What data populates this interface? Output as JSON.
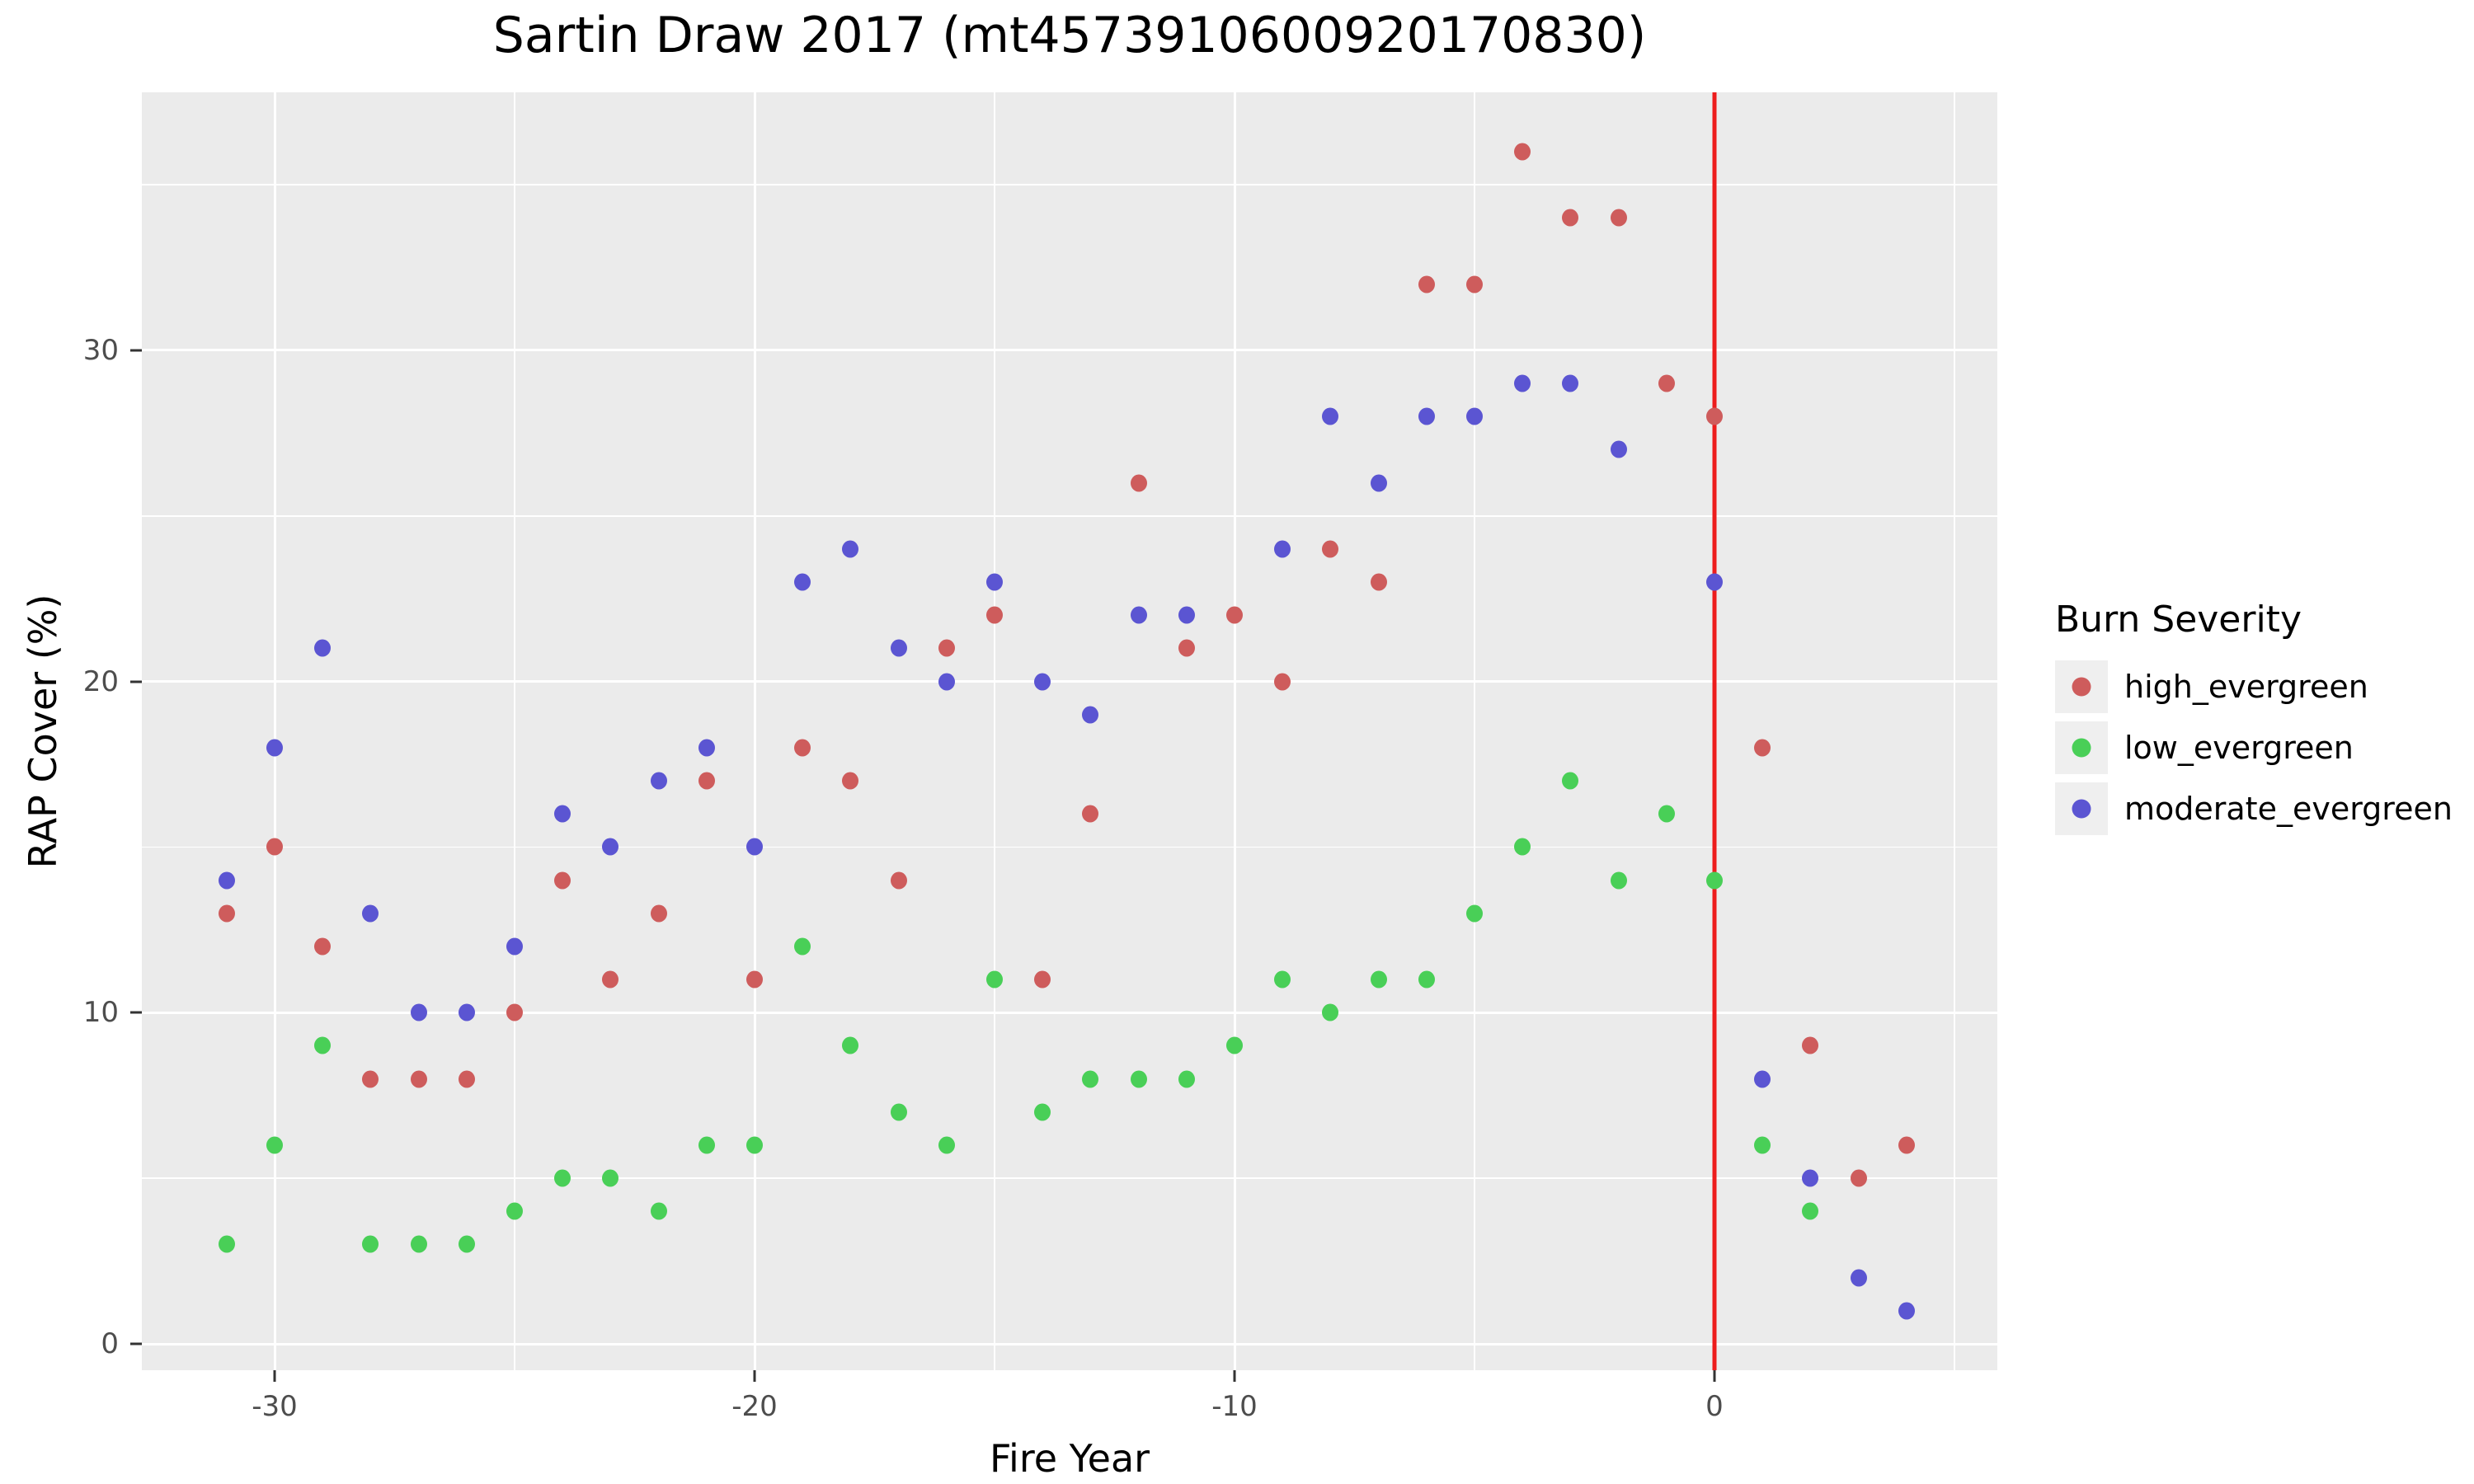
{
  "title": "Sartin Draw 2017 (mt4573910600920170830)",
  "axes": {
    "x": {
      "label": "Fire Year",
      "ticks": [
        -30,
        -20,
        -10,
        0
      ],
      "tick_labels": [
        "-30",
        "-20",
        "-10",
        "0"
      ],
      "minor_ticks": [
        -25,
        -15,
        -5,
        5
      ],
      "range": [
        -32.8,
        5.9
      ]
    },
    "y": {
      "label": "RAP Cover (%)",
      "ticks": [
        0,
        10,
        20,
        30
      ],
      "tick_labels": [
        "0",
        "10",
        "20",
        "30"
      ],
      "minor_ticks": [
        5,
        15,
        25,
        35
      ],
      "range": [
        -0.8,
        37.8
      ]
    }
  },
  "vline": {
    "x": 0,
    "color": "#ED1C1C"
  },
  "legend": {
    "title": "Burn Severity",
    "items": [
      {
        "label": "high_evergreen",
        "color": "#CE5C5C"
      },
      {
        "label": "low_evergreen",
        "color": "#49CF57"
      },
      {
        "label": "moderate_evergreen",
        "color": "#5B55D2"
      }
    ]
  },
  "chart_data": {
    "type": "scatter",
    "title": "Sartin Draw 2017 (mt4573910600920170830)",
    "xlabel": "Fire Year",
    "ylabel": "RAP Cover (%)",
    "xlim": [
      -32.8,
      5.9
    ],
    "ylim": [
      -0.8,
      37.8
    ],
    "grid": "on",
    "legend_position": "right",
    "background": "#EBEBEB",
    "series": [
      {
        "name": "high_evergreen",
        "color": "#CE5C5C",
        "points": [
          [
            -31,
            13
          ],
          [
            -30,
            15
          ],
          [
            -29,
            12
          ],
          [
            -28,
            8
          ],
          [
            -27,
            8
          ],
          [
            -26,
            8
          ],
          [
            -25,
            10
          ],
          [
            -24,
            14
          ],
          [
            -23,
            11
          ],
          [
            -22,
            13
          ],
          [
            -21,
            17
          ],
          [
            -20,
            11
          ],
          [
            -19,
            18
          ],
          [
            -18,
            17
          ],
          [
            -17,
            14
          ],
          [
            -16,
            21
          ],
          [
            -15,
            22
          ],
          [
            -14,
            11
          ],
          [
            -13,
            16
          ],
          [
            -12,
            26
          ],
          [
            -11,
            21
          ],
          [
            -10,
            22
          ],
          [
            -9,
            20
          ],
          [
            -8,
            24
          ],
          [
            -7,
            23
          ],
          [
            -6,
            32
          ],
          [
            -5,
            32
          ],
          [
            -4,
            36
          ],
          [
            -3,
            34
          ],
          [
            -2,
            34
          ],
          [
            -1,
            29
          ],
          [
            0,
            28
          ],
          [
            1,
            18
          ],
          [
            2,
            9
          ],
          [
            3,
            5
          ],
          [
            4,
            6
          ]
        ]
      },
      {
        "name": "low_evergreen",
        "color": "#49CF57",
        "points": [
          [
            -31,
            3
          ],
          [
            -30,
            6
          ],
          [
            -29,
            9
          ],
          [
            -28,
            3
          ],
          [
            -27,
            3
          ],
          [
            -26,
            3
          ],
          [
            -25,
            4
          ],
          [
            -24,
            5
          ],
          [
            -23,
            5
          ],
          [
            -22,
            4
          ],
          [
            -21,
            6
          ],
          [
            -20,
            6
          ],
          [
            -19,
            12
          ],
          [
            -18,
            9
          ],
          [
            -17,
            7
          ],
          [
            -16,
            6
          ],
          [
            -15,
            11
          ],
          [
            -14,
            7
          ],
          [
            -13,
            8
          ],
          [
            -12,
            8
          ],
          [
            -11,
            8
          ],
          [
            -10,
            9
          ],
          [
            -9,
            11
          ],
          [
            -8,
            10
          ],
          [
            -7,
            11
          ],
          [
            -6,
            11
          ],
          [
            -5,
            13
          ],
          [
            -4,
            15
          ],
          [
            -3,
            17
          ],
          [
            -2,
            14
          ],
          [
            -1,
            16
          ],
          [
            0,
            14
          ],
          [
            1,
            6
          ],
          [
            2,
            4
          ]
        ]
      },
      {
        "name": "moderate_evergreen",
        "color": "#5B55D2",
        "points": [
          [
            -31,
            14
          ],
          [
            -30,
            18
          ],
          [
            -29,
            21
          ],
          [
            -28,
            13
          ],
          [
            -27,
            10
          ],
          [
            -26,
            10
          ],
          [
            -25,
            12
          ],
          [
            -24,
            16
          ],
          [
            -23,
            15
          ],
          [
            -22,
            17
          ],
          [
            -21,
            18
          ],
          [
            -20,
            15
          ],
          [
            -19,
            23
          ],
          [
            -18,
            24
          ],
          [
            -17,
            21
          ],
          [
            -16,
            20
          ],
          [
            -15,
            23
          ],
          [
            -14,
            20
          ],
          [
            -13,
            19
          ],
          [
            -12,
            22
          ],
          [
            -11,
            22
          ],
          [
            -9,
            24
          ],
          [
            -8,
            28
          ],
          [
            -7,
            26
          ],
          [
            -6,
            28
          ],
          [
            -5,
            28
          ],
          [
            -4,
            29
          ],
          [
            -3,
            29
          ],
          [
            -2,
            27
          ],
          [
            0,
            23
          ],
          [
            1,
            8
          ],
          [
            2,
            5
          ],
          [
            3,
            2
          ],
          [
            4,
            1
          ]
        ]
      }
    ]
  }
}
